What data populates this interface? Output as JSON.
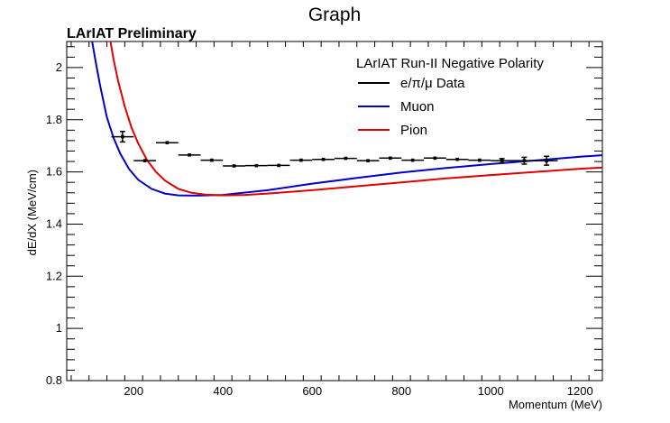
{
  "chart_data": {
    "type": "line",
    "title": "Graph",
    "label": "LArIAT Preliminary",
    "xlabel": "Momentum (MeV)",
    "ylabel": "dE/dX (MeV/cm)",
    "xlim": [
      50,
      1250
    ],
    "ylim": [
      0.8,
      2.1
    ],
    "xticks": [
      200,
      400,
      600,
      800,
      1000,
      1200
    ],
    "yticks": [
      0.8,
      1,
      1.2,
      1.4,
      1.6,
      1.8,
      2
    ],
    "ytick_labels": [
      "0.8",
      "1",
      "1.2",
      "1.4",
      "1.6",
      "1.8",
      "2"
    ],
    "xtick_labels": [
      "200",
      "400",
      "600",
      "800",
      "1000",
      "1200"
    ],
    "legend": {
      "title": "LArIAT Run-II Negative Polarity",
      "placement": "top-right",
      "entries": [
        {
          "label": "e/π/μ Data",
          "color": "#000000"
        },
        {
          "label": "Muon",
          "color": "#0000cc"
        },
        {
          "label": "Pion",
          "color": "#e00000"
        }
      ]
    },
    "data_points": {
      "color": "#000000",
      "points": [
        {
          "x": 175,
          "y": 1.735,
          "xerr": 25,
          "yerr": 0.02
        },
        {
          "x": 225,
          "y": 1.643,
          "xerr": 25,
          "yerr": 0.006
        },
        {
          "x": 275,
          "y": 1.712,
          "xerr": 25,
          "yerr": 0.006
        },
        {
          "x": 325,
          "y": 1.665,
          "xerr": 25,
          "yerr": 0.004
        },
        {
          "x": 375,
          "y": 1.645,
          "xerr": 25,
          "yerr": 0.004
        },
        {
          "x": 425,
          "y": 1.623,
          "xerr": 25,
          "yerr": 0.004
        },
        {
          "x": 475,
          "y": 1.624,
          "xerr": 25,
          "yerr": 0.004
        },
        {
          "x": 525,
          "y": 1.625,
          "xerr": 25,
          "yerr": 0.004
        },
        {
          "x": 575,
          "y": 1.645,
          "xerr": 25,
          "yerr": 0.004
        },
        {
          "x": 625,
          "y": 1.648,
          "xerr": 25,
          "yerr": 0.004
        },
        {
          "x": 675,
          "y": 1.652,
          "xerr": 25,
          "yerr": 0.004
        },
        {
          "x": 725,
          "y": 1.643,
          "xerr": 25,
          "yerr": 0.004
        },
        {
          "x": 775,
          "y": 1.653,
          "xerr": 25,
          "yerr": 0.004
        },
        {
          "x": 825,
          "y": 1.645,
          "xerr": 25,
          "yerr": 0.004
        },
        {
          "x": 875,
          "y": 1.653,
          "xerr": 25,
          "yerr": 0.005
        },
        {
          "x": 925,
          "y": 1.648,
          "xerr": 25,
          "yerr": 0.005
        },
        {
          "x": 975,
          "y": 1.645,
          "xerr": 25,
          "yerr": 0.006
        },
        {
          "x": 1025,
          "y": 1.643,
          "xerr": 25,
          "yerr": 0.008
        },
        {
          "x": 1075,
          "y": 1.643,
          "xerr": 25,
          "yerr": 0.013
        },
        {
          "x": 1125,
          "y": 1.643,
          "xerr": 25,
          "yerr": 0.017
        }
      ]
    },
    "series": [
      {
        "name": "Muon",
        "color": "#0000cc",
        "x": [
          107,
          115,
          125,
          140,
          155,
          170,
          190,
          210,
          240,
          270,
          300,
          340,
          400,
          500,
          600,
          700,
          800,
          900,
          1000,
          1100,
          1200,
          1250
        ],
        "y": [
          2.1,
          2.02,
          1.93,
          1.81,
          1.73,
          1.67,
          1.61,
          1.57,
          1.535,
          1.517,
          1.51,
          1.509,
          1.512,
          1.53,
          1.555,
          1.577,
          1.598,
          1.615,
          1.63,
          1.644,
          1.658,
          1.664
        ]
      },
      {
        "name": "Pion",
        "color": "#e00000",
        "x": [
          148,
          155,
          165,
          180,
          195,
          210,
          230,
          250,
          270,
          300,
          330,
          360,
          400,
          450,
          500,
          600,
          700,
          800,
          900,
          1000,
          1100,
          1200,
          1250
        ],
        "y": [
          2.1,
          2.03,
          1.95,
          1.85,
          1.77,
          1.71,
          1.645,
          1.6,
          1.567,
          1.535,
          1.52,
          1.513,
          1.51,
          1.512,
          1.517,
          1.53,
          1.545,
          1.56,
          1.575,
          1.588,
          1.6,
          1.612,
          1.617
        ]
      }
    ]
  }
}
